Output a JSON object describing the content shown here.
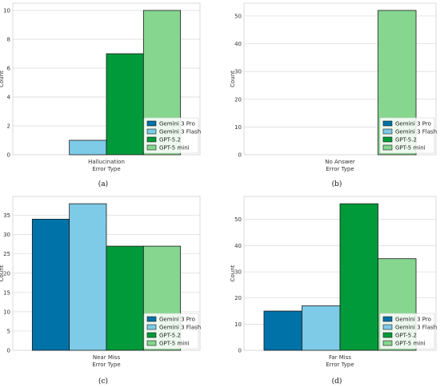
{
  "colors": {
    "Gemini 3 Pro": "#0072a8",
    "Gemini 3 Flash": "#7dcbe6",
    "GPT-5.2": "#009a3a",
    "GPT-5 mini": "#86d690",
    "grid": "#d9d9d9",
    "frame": "#cfcfcf",
    "bar_edge": "#1a1a1a"
  },
  "chart_data": [
    {
      "type": "bar",
      "caption": "(a)",
      "categories": [
        "Hallucination"
      ],
      "xlabel": "Error Type",
      "ylabel": "Count",
      "ylim": [
        0,
        10.5
      ],
      "yticks": [
        0,
        2,
        4,
        6,
        8,
        10
      ],
      "grid": true,
      "legend_placement": "bottom-right",
      "series": [
        {
          "name": "Gemini 3 Pro",
          "values": [
            0
          ]
        },
        {
          "name": "Gemini 3 Flash",
          "values": [
            1
          ]
        },
        {
          "name": "GPT-5.2",
          "values": [
            7
          ]
        },
        {
          "name": "GPT-5 mini",
          "values": [
            10
          ]
        }
      ]
    },
    {
      "type": "bar",
      "caption": "(b)",
      "categories": [
        "No Answer"
      ],
      "xlabel": "Error Type",
      "ylabel": "Count",
      "ylim": [
        0,
        54.6
      ],
      "yticks": [
        0,
        10,
        20,
        30,
        40,
        50
      ],
      "grid": true,
      "legend_placement": "bottom-right",
      "series": [
        {
          "name": "Gemini 3 Pro",
          "values": [
            0
          ]
        },
        {
          "name": "Gemini 3 Flash",
          "values": [
            0
          ]
        },
        {
          "name": "GPT-5.2",
          "values": [
            0
          ]
        },
        {
          "name": "GPT-5 mini",
          "values": [
            52
          ]
        }
      ]
    },
    {
      "type": "bar",
      "caption": "(c)",
      "categories": [
        "Near Miss"
      ],
      "xlabel": "Error Type",
      "ylabel": "Count",
      "ylim": [
        0,
        39.9
      ],
      "yticks": [
        0,
        5,
        10,
        15,
        20,
        25,
        30,
        35
      ],
      "grid": true,
      "legend_placement": "bottom-right",
      "series": [
        {
          "name": "Gemini 3 Pro",
          "values": [
            34
          ]
        },
        {
          "name": "Gemini 3 Flash",
          "values": [
            38
          ]
        },
        {
          "name": "GPT-5.2",
          "values": [
            27
          ]
        },
        {
          "name": "GPT-5 mini",
          "values": [
            27
          ]
        }
      ]
    },
    {
      "type": "bar",
      "caption": "(d)",
      "categories": [
        "Far Miss"
      ],
      "xlabel": "Error Type",
      "ylabel": "Count",
      "ylim": [
        0,
        58.8
      ],
      "yticks": [
        0,
        10,
        20,
        30,
        40,
        50
      ],
      "grid": true,
      "legend_placement": "bottom-right",
      "series": [
        {
          "name": "Gemini 3 Pro",
          "values": [
            15
          ]
        },
        {
          "name": "Gemini 3 Flash",
          "values": [
            17
          ]
        },
        {
          "name": "GPT-5.2",
          "values": [
            56
          ]
        },
        {
          "name": "GPT-5 mini",
          "values": [
            35
          ]
        }
      ]
    }
  ]
}
